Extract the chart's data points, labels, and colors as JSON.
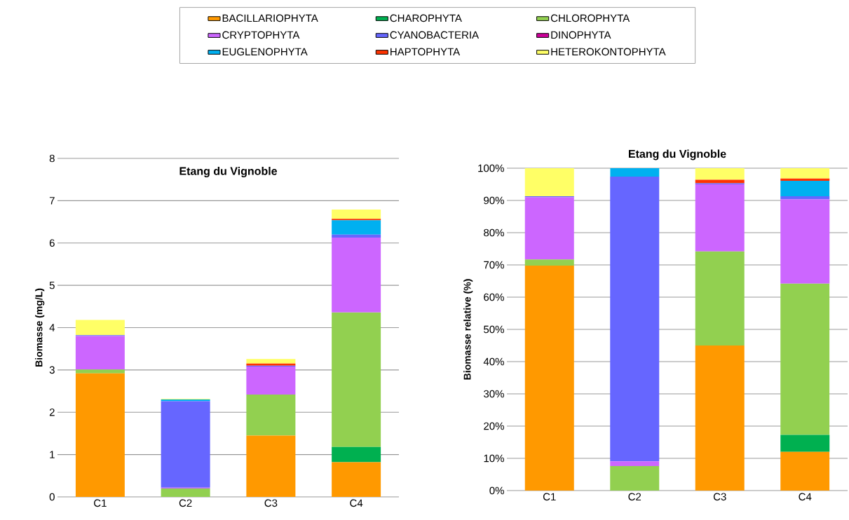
{
  "chart_data": [
    {
      "type": "bar",
      "stacked": true,
      "title": "Etang du Vignoble",
      "ylabel": "Biomasse (mg/L)",
      "categories": [
        "C1",
        "C2",
        "C3",
        "C4"
      ],
      "ylim": [
        0,
        8
      ],
      "yticks": [
        0,
        1,
        2,
        3,
        4,
        5,
        6,
        7,
        8
      ],
      "grid": "y",
      "legend": "top",
      "series": [
        {
          "name": "BACILLARIOPHYTA",
          "color": "#ff9900",
          "values": [
            2.92,
            0,
            1.45,
            0.82
          ]
        },
        {
          "name": "CHAROPHYTA",
          "color": "#00b050",
          "values": [
            0,
            0,
            0,
            0.36
          ]
        },
        {
          "name": "CHLOROPHYTA",
          "color": "#92d050",
          "values": [
            0.09,
            0.2,
            0.97,
            3.18
          ]
        },
        {
          "name": "CRYPTOPHYTA",
          "color": "#cc66ff",
          "values": [
            0.79,
            0.02,
            0.66,
            1.77
          ]
        },
        {
          "name": "CYANOBACTERIA",
          "color": "#6666ff",
          "values": [
            0.02,
            2.04,
            0.02,
            0.07
          ]
        },
        {
          "name": "DINOPHYTA",
          "color": "#cc0099",
          "values": [
            0,
            0,
            0,
            0
          ]
        },
        {
          "name": "EUGLENOPHYTA",
          "color": "#00b0f0",
          "values": [
            0,
            0.04,
            0,
            0.34
          ]
        },
        {
          "name": "HAPTOPHYTA",
          "color": "#ff3300",
          "values": [
            0,
            0,
            0.05,
            0.03
          ]
        },
        {
          "name": "HETEROKONTOPHYTA",
          "color": "#ffff66",
          "values": [
            0.36,
            0.02,
            0.11,
            0.22
          ]
        }
      ]
    },
    {
      "type": "bar",
      "stacked": true,
      "title": "Etang du Vignoble",
      "ylabel": "Biomasse relative (%)",
      "categories": [
        "C1",
        "C2",
        "C3",
        "C4"
      ],
      "ylim": [
        0,
        100
      ],
      "yticks": [
        {
          "value": 0,
          "label": "0%"
        },
        {
          "value": 10,
          "label": "10%"
        },
        {
          "value": 20,
          "label": "20%"
        },
        {
          "value": 30,
          "label": "30%"
        },
        {
          "value": 40,
          "label": "40%"
        },
        {
          "value": 50,
          "label": "50%"
        },
        {
          "value": 60,
          "label": "60%"
        },
        {
          "value": 70,
          "label": "70%"
        },
        {
          "value": 80,
          "label": "80%"
        },
        {
          "value": 90,
          "label": "90%"
        },
        {
          "value": 100,
          "label": "100%"
        }
      ],
      "grid": "y",
      "series": [
        {
          "color": "#ff9900",
          "values": [
            69.8,
            0,
            45,
            12
          ]
        },
        {
          "color": "#00b050",
          "values": [
            0,
            0,
            0,
            5.3
          ]
        },
        {
          "color": "#92d050",
          "values": [
            1.9,
            7.6,
            29.2,
            46.9
          ]
        },
        {
          "color": "#cc66ff",
          "values": [
            19.3,
            1.5,
            20.8,
            26.1
          ]
        },
        {
          "color": "#6666ff",
          "values": [
            0.3,
            88.3,
            0.3,
            1.0
          ]
        },
        {
          "color": "#cc0099",
          "values": [
            0,
            0,
            0,
            0
          ]
        },
        {
          "color": "#00b0f0",
          "values": [
            0,
            2.6,
            0,
            4.8
          ]
        },
        {
          "color": "#ff3300",
          "values": [
            0,
            0,
            1.1,
            0.7
          ]
        },
        {
          "color": "#ffff66",
          "values": [
            8.7,
            0,
            3.6,
            3.2
          ]
        }
      ]
    }
  ]
}
